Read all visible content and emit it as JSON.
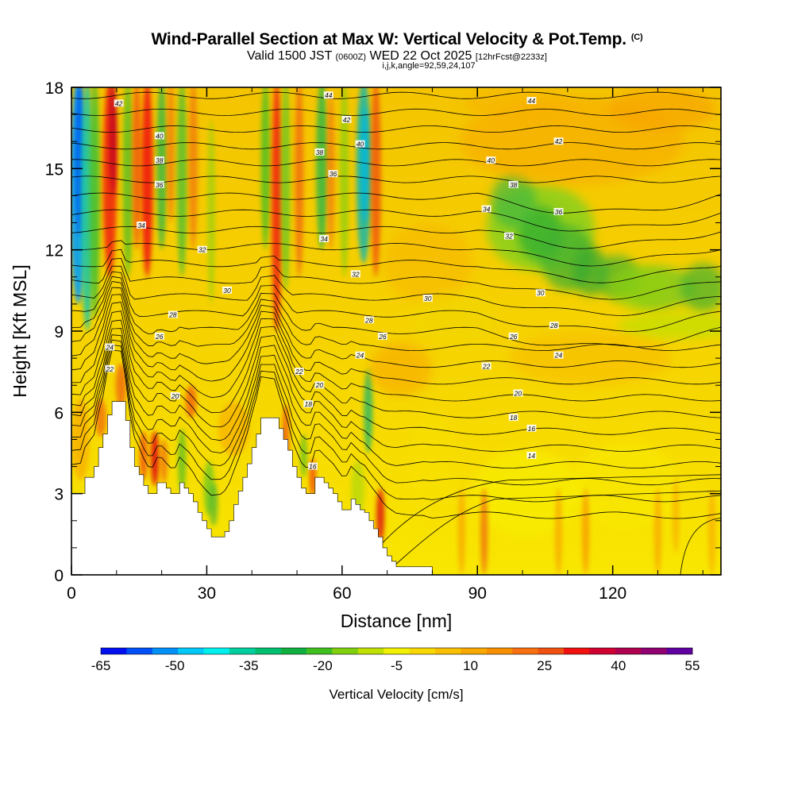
{
  "title": {
    "main": "Wind-Parallel Section at Max W: Vertical Velocity & Pot.Temp.",
    "copyright": "(C)",
    "valid_prefix": "Valid 1500 JST",
    "utc": "(0600Z)",
    "date": "WED 22 Oct 2025",
    "forecast": "[12hrFcst@2233z]",
    "indices": "i,j,k,angle=92,59,24,107"
  },
  "chart_data": {
    "type": "heatmap",
    "title": "Wind-Parallel Section at Max W: Vertical Velocity & Pot.Temp.",
    "xlabel": "Distance [nm]",
    "ylabel": "Height [Kft MSL]",
    "xlim": [
      0,
      144
    ],
    "ylim": [
      0,
      18
    ],
    "x_ticks": [
      0,
      30,
      60,
      90,
      120
    ],
    "y_ticks": [
      0,
      3,
      6,
      9,
      12,
      15,
      18
    ],
    "colorbar": {
      "title": "Vertical Velocity [cm/s]",
      "tick_labels": [
        "-65",
        "-50",
        "-35",
        "-20",
        "-5",
        "10",
        "25",
        "40",
        "55"
      ],
      "colors": [
        "#0010f0",
        "#0050f8",
        "#0090f8",
        "#00c8f8",
        "#00f0f0",
        "#00d0a0",
        "#00c070",
        "#10b040",
        "#40c020",
        "#80d010",
        "#c0e000",
        "#f0f000",
        "#f8d800",
        "#f8c000",
        "#f8a800",
        "#f89000",
        "#f87010",
        "#f05010",
        "#f01010",
        "#d00030",
        "#b00050",
        "#900070",
        "#6000a0"
      ]
    },
    "terrain_kft": [
      [
        0,
        3.0
      ],
      [
        2,
        3.0
      ],
      [
        3,
        3.6
      ],
      [
        5,
        4.0
      ],
      [
        6,
        4.7
      ],
      [
        7,
        5.2
      ],
      [
        8,
        5.9
      ],
      [
        9,
        6.4
      ],
      [
        11,
        6.4
      ],
      [
        12,
        5.7
      ],
      [
        13,
        4.7
      ],
      [
        14,
        4.0
      ],
      [
        15,
        3.7
      ],
      [
        16,
        3.3
      ],
      [
        17,
        3.0
      ],
      [
        18,
        3.0
      ],
      [
        19,
        3.4
      ],
      [
        20,
        3.4
      ],
      [
        21,
        3.2
      ],
      [
        22,
        3.0
      ],
      [
        23,
        3.0
      ],
      [
        24,
        3.4
      ],
      [
        25,
        3.2
      ],
      [
        26,
        3.0
      ],
      [
        27,
        2.7
      ],
      [
        28,
        2.3
      ],
      [
        29,
        2.0
      ],
      [
        30,
        1.7
      ],
      [
        31,
        1.4
      ],
      [
        33,
        1.4
      ],
      [
        34,
        1.6
      ],
      [
        35,
        2.0
      ],
      [
        36,
        2.6
      ],
      [
        37,
        3.1
      ],
      [
        38,
        3.6
      ],
      [
        39,
        4.1
      ],
      [
        40,
        4.7
      ],
      [
        41,
        5.2
      ],
      [
        42,
        5.8
      ],
      [
        45,
        5.8
      ],
      [
        46,
        5.4
      ],
      [
        47,
        5.0
      ],
      [
        48,
        4.6
      ],
      [
        49,
        4.0
      ],
      [
        50,
        3.6
      ],
      [
        51,
        3.2
      ],
      [
        52,
        3.0
      ],
      [
        53,
        3.0
      ],
      [
        54,
        3.6
      ],
      [
        55,
        3.6
      ],
      [
        56,
        3.4
      ],
      [
        57,
        3.2
      ],
      [
        58,
        3.0
      ],
      [
        59,
        2.7
      ],
      [
        60,
        2.4
      ],
      [
        61,
        2.4
      ],
      [
        62,
        2.8
      ],
      [
        63,
        2.6
      ],
      [
        64,
        2.4
      ],
      [
        65,
        2.3
      ],
      [
        66,
        2.0
      ],
      [
        67,
        1.7
      ],
      [
        68,
        1.4
      ],
      [
        69,
        1.0
      ],
      [
        70,
        0.7
      ],
      [
        71,
        0.5
      ],
      [
        72,
        0.3
      ],
      [
        78,
        0.3
      ],
      [
        80,
        0.0
      ],
      [
        144,
        0.0
      ]
    ],
    "theta_contour_labels": [
      {
        "value": "44",
        "x": 57,
        "y": 17.7
      },
      {
        "value": "42",
        "x": 10.5,
        "y": 17.4
      },
      {
        "value": "42",
        "x": 61,
        "y": 16.8
      },
      {
        "value": "40",
        "x": 19.5,
        "y": 16.2
      },
      {
        "value": "40",
        "x": 64,
        "y": 15.9
      },
      {
        "value": "38",
        "x": 19.5,
        "y": 15.3
      },
      {
        "value": "38",
        "x": 55,
        "y": 15.6
      },
      {
        "value": "36",
        "x": 19.5,
        "y": 14.4
      },
      {
        "value": "36",
        "x": 58,
        "y": 14.8
      },
      {
        "value": "34",
        "x": 15.5,
        "y": 12.9
      },
      {
        "value": "34",
        "x": 56,
        "y": 12.4
      },
      {
        "value": "32",
        "x": 29,
        "y": 12.0
      },
      {
        "value": "32",
        "x": 63,
        "y": 11.1
      },
      {
        "value": "30",
        "x": 34.5,
        "y": 10.5
      },
      {
        "value": "28",
        "x": 22.5,
        "y": 9.6
      },
      {
        "value": "28",
        "x": 66,
        "y": 9.4
      },
      {
        "value": "26",
        "x": 19.5,
        "y": 8.8
      },
      {
        "value": "26",
        "x": 69,
        "y": 8.8
      },
      {
        "value": "24",
        "x": 8.5,
        "y": 8.4
      },
      {
        "value": "24",
        "x": 64,
        "y": 8.1
      },
      {
        "value": "22",
        "x": 8.5,
        "y": 7.6
      },
      {
        "value": "22",
        "x": 50.5,
        "y": 7.5
      },
      {
        "value": "20",
        "x": 23,
        "y": 6.6
      },
      {
        "value": "20",
        "x": 55,
        "y": 7.0
      },
      {
        "value": "18",
        "x": 52.5,
        "y": 6.3
      },
      {
        "value": "16",
        "x": 53.5,
        "y": 4.0
      },
      {
        "value": "44",
        "x": 102,
        "y": 17.5
      },
      {
        "value": "42",
        "x": 108,
        "y": 16.0
      },
      {
        "value": "40",
        "x": 93,
        "y": 15.3
      },
      {
        "value": "38",
        "x": 98,
        "y": 14.4
      },
      {
        "value": "36",
        "x": 108,
        "y": 13.4
      },
      {
        "value": "34",
        "x": 92,
        "y": 13.5
      },
      {
        "value": "32",
        "x": 97,
        "y": 12.5
      },
      {
        "value": "30",
        "x": 79,
        "y": 10.2
      },
      {
        "value": "30",
        "x": 104,
        "y": 10.4
      },
      {
        "value": "28",
        "x": 107,
        "y": 9.2
      },
      {
        "value": "26",
        "x": 98,
        "y": 8.8
      },
      {
        "value": "24",
        "x": 108,
        "y": 8.1
      },
      {
        "value": "22",
        "x": 92,
        "y": 7.7
      },
      {
        "value": "20",
        "x": 99,
        "y": 6.7
      },
      {
        "value": "18",
        "x": 98,
        "y": 5.8
      },
      {
        "value": "16",
        "x": 102,
        "y": 5.4
      },
      {
        "value": "14",
        "x": 102,
        "y": 4.4
      }
    ]
  }
}
